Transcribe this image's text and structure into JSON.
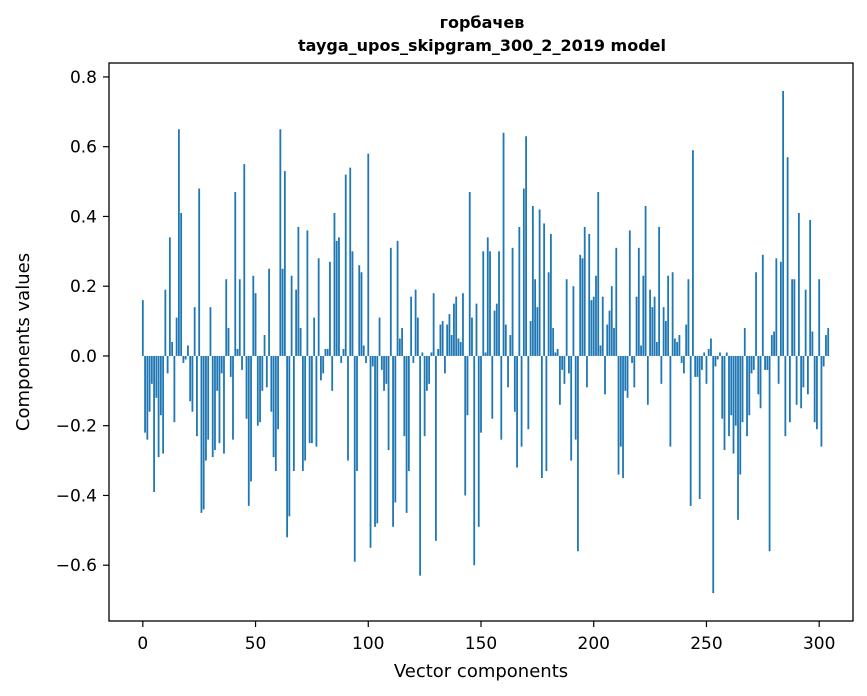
{
  "chart_data": {
    "type": "bar",
    "title": "горбачев",
    "subtitle": "tayga_upos_skipgram_300_2_2019 model",
    "xlabel": "Vector components",
    "ylabel": "Components values",
    "xlim": [
      -15,
      315
    ],
    "ylim": [
      -0.76,
      0.84
    ],
    "xticks": [
      0,
      50,
      100,
      150,
      200,
      250,
      300
    ],
    "yticks": [
      -0.6,
      -0.4,
      -0.2,
      0.0,
      0.2,
      0.4,
      0.6,
      0.8
    ],
    "xtick_labels": [
      "0",
      "50",
      "100",
      "150",
      "200",
      "250",
      "300"
    ],
    "ytick_labels": [
      "−0.6",
      "−0.4",
      "−0.2",
      "0.0",
      "0.2",
      "0.4",
      "0.6",
      "0.8"
    ],
    "bar_color": "#1f77b4",
    "grid": false,
    "legend": "none",
    "values": [
      0.16,
      -0.22,
      -0.24,
      -0.16,
      -0.08,
      -0.39,
      -0.12,
      -0.29,
      -0.17,
      -0.28,
      0.19,
      -0.05,
      0.34,
      0.04,
      -0.19,
      0.11,
      0.65,
      0.41,
      -0.02,
      -0.01,
      0.03,
      -0.13,
      -0.16,
      0.14,
      -0.23,
      0.48,
      -0.45,
      -0.44,
      -0.3,
      -0.24,
      0.14,
      -0.29,
      -0.27,
      -0.1,
      -0.25,
      -0.05,
      -0.28,
      0.22,
      0.08,
      -0.06,
      -0.24,
      0.47,
      0.02,
      0.22,
      -0.04,
      0.55,
      -0.18,
      -0.43,
      -0.36,
      0.23,
      0.18,
      -0.2,
      -0.19,
      -0.1,
      0.06,
      -0.09,
      0.25,
      -0.16,
      -0.29,
      -0.33,
      -0.21,
      0.65,
      0.25,
      0.53,
      -0.52,
      -0.46,
      0.23,
      -0.33,
      0.19,
      0.37,
      0.08,
      -0.33,
      -0.3,
      0.36,
      -0.25,
      -0.25,
      0.11,
      -0.26,
      0.28,
      -0.07,
      -0.05,
      0.02,
      0.02,
      0.27,
      -0.1,
      0.41,
      0.33,
      0.34,
      -0.02,
      0.02,
      0.52,
      -0.3,
      0.54,
      0.3,
      -0.59,
      -0.33,
      0.26,
      0.24,
      0.03,
      -0.02,
      0.58,
      -0.55,
      -0.03,
      -0.49,
      -0.48,
      0.11,
      -0.04,
      -0.1,
      -0.08,
      -0.27,
      0.31,
      -0.49,
      -0.42,
      0.33,
      0.05,
      0.08,
      -0.23,
      -0.45,
      -0.33,
      0.17,
      -0.02,
      0.19,
      0.11,
      -0.63,
      0.01,
      -0.23,
      -0.1,
      -0.08,
      0.01,
      0.18,
      -0.53,
      0.02,
      0.09,
      0.1,
      -0.05,
      0.09,
      0.12,
      0.06,
      0.15,
      0.17,
      0.05,
      0.04,
      0.18,
      -0.4,
      -0.17,
      0.47,
      0.11,
      -0.6,
      0.15,
      -0.49,
      -0.22,
      0.3,
      0.01,
      0.34,
      0.3,
      -0.18,
      0.13,
      0.15,
      0.3,
      -0.24,
      0.64,
      0.09,
      -0.09,
      0.06,
      0.31,
      -0.16,
      -0.32,
      0.37,
      -0.26,
      0.48,
      0.63,
      -0.21,
      0.1,
      0.43,
      0.22,
      0.14,
      0.42,
      -0.35,
      0.38,
      -0.33,
      0.24,
      0.35,
      0.08,
      0.01,
      0.02,
      -0.14,
      -0.04,
      -0.08,
      0.22,
      -0.05,
      -0.3,
      0.2,
      -0.24,
      -0.56,
      0.29,
      0.28,
      0.37,
      -0.09,
      0.35,
      0.16,
      0.17,
      0.23,
      0.47,
      0.03,
      0.17,
      -0.11,
      0.09,
      0.13,
      0.2,
      0.08,
      0.31,
      -0.34,
      -0.26,
      -0.35,
      -0.1,
      -0.12,
      0.36,
      -0.02,
      -0.09,
      0.17,
      0.31,
      0.03,
      0.23,
      0.43,
      -0.14,
      0.19,
      0.14,
      0.17,
      0.04,
      0.37,
      -0.08,
      0.14,
      0.1,
      0.23,
      -0.26,
      0.24,
      0.05,
      0.04,
      0.06,
      -0.02,
      -0.05,
      0.09,
      0.22,
      -0.43,
      0.59,
      -0.06,
      -0.06,
      -0.41,
      -0.04,
      0.01,
      -0.08,
      0.02,
      0.05,
      -0.68,
      -0.03,
      -0.01,
      0.01,
      -0.18,
      -0.27,
      0.01,
      -0.23,
      -0.17,
      -0.28,
      -0.2,
      -0.47,
      -0.34,
      -0.19,
      0.08,
      -0.23,
      -0.17,
      -0.05,
      -0.04,
      0.24,
      -0.11,
      -0.15,
      0.29,
      -0.04,
      -0.04,
      -0.56,
      0.06,
      0.07,
      0.28,
      -0.08,
      0.27,
      0.76,
      -0.23,
      0.57,
      -0.19,
      0.22,
      0.22,
      -0.14,
      0.41,
      -0.15,
      -0.09,
      0.19,
      -0.11,
      0.39,
      0.07,
      -0.19,
      -0.21,
      0.22,
      -0.26,
      -0.03,
      0.06,
      0.08
    ]
  }
}
